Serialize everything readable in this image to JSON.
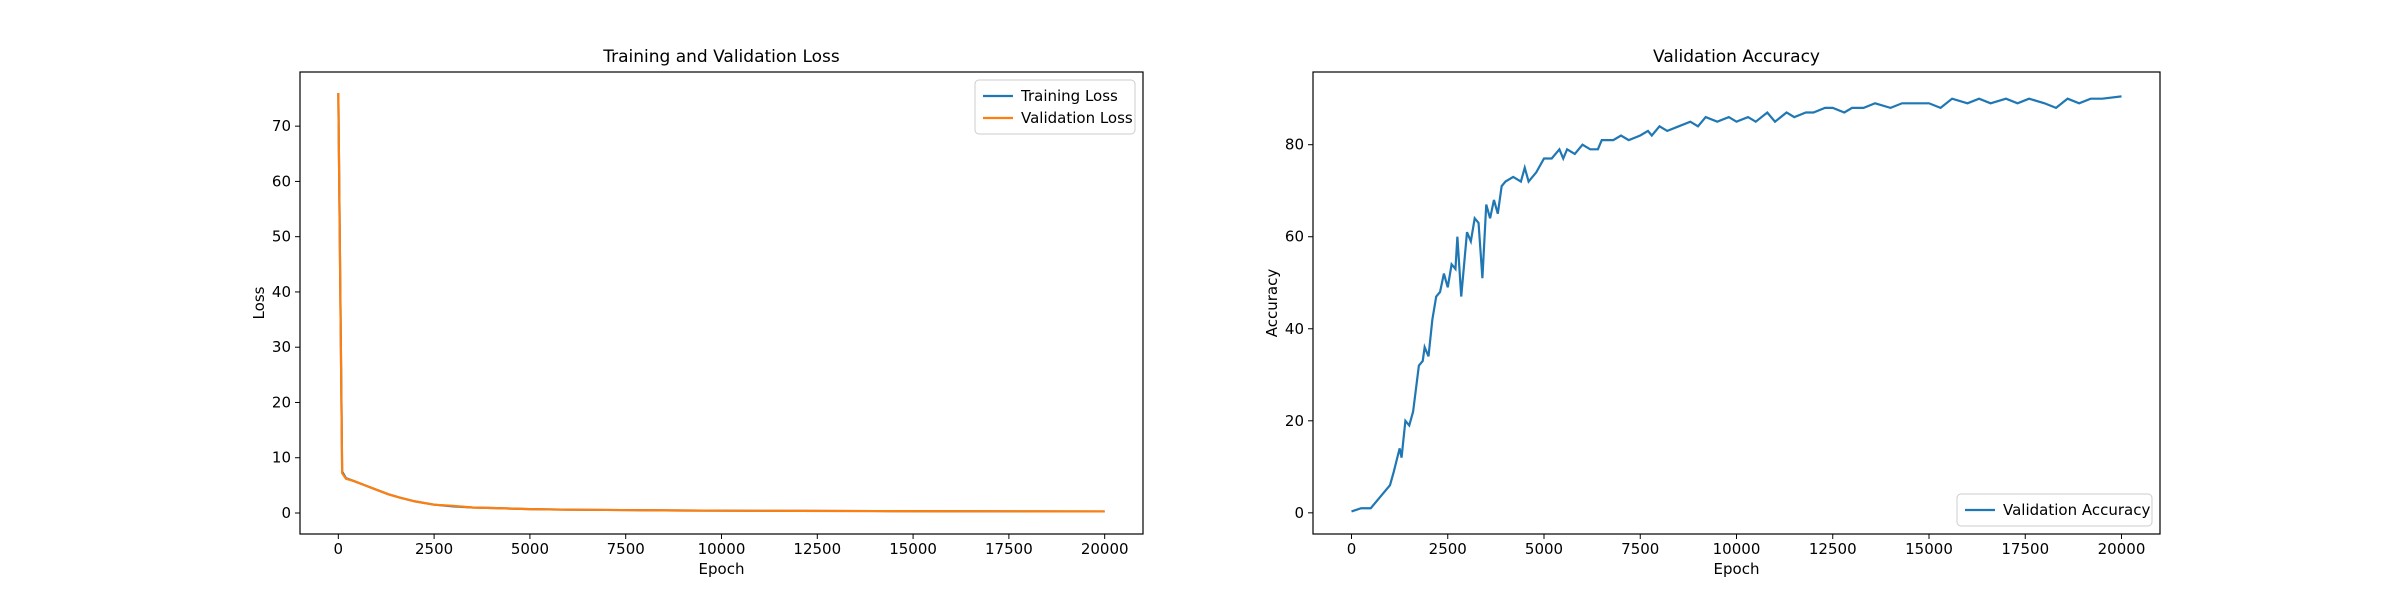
{
  "chart_data": [
    {
      "type": "line",
      "title": "Training and Validation Loss",
      "x_label": "Epoch",
      "y_label": "Loss",
      "x": [
        0,
        100,
        200,
        400,
        700,
        1000,
        1300,
        1600,
        2000,
        2500,
        3000,
        3500,
        4000,
        5000,
        6000,
        7000,
        8000,
        9000,
        10000,
        12000,
        14000,
        16000,
        18000,
        20000
      ],
      "series": [
        {
          "name": "Training Loss",
          "color": "#1f77b4",
          "values": [
            76,
            7.5,
            6.3,
            5.8,
            5.0,
            4.2,
            3.4,
            2.8,
            2.1,
            1.5,
            1.2,
            1.0,
            0.9,
            0.7,
            0.6,
            0.55,
            0.5,
            0.45,
            0.42,
            0.38,
            0.35,
            0.32,
            0.3,
            0.28
          ]
        },
        {
          "name": "Validation Loss",
          "color": "#ff7f0e",
          "values": [
            76,
            7.2,
            6.2,
            5.8,
            5.0,
            4.2,
            3.4,
            2.8,
            2.1,
            1.5,
            1.3,
            1.0,
            0.9,
            0.7,
            0.6,
            0.55,
            0.5,
            0.45,
            0.42,
            0.38,
            0.35,
            0.32,
            0.3,
            0.28
          ]
        }
      ],
      "xlim": [
        -1000,
        21000
      ],
      "ylim": [
        -3.8,
        79.8
      ],
      "xticks": [
        0,
        2500,
        5000,
        7500,
        10000,
        12500,
        15000,
        17500,
        20000
      ],
      "yticks": [
        0,
        10,
        20,
        30,
        40,
        50,
        60,
        70
      ],
      "legend": "upper right"
    },
    {
      "type": "line",
      "title": "Validation Accuracy",
      "x_label": "Epoch",
      "y_label": "Accuracy",
      "x": [
        0,
        250,
        500,
        750,
        1000,
        1100,
        1250,
        1300,
        1400,
        1500,
        1600,
        1750,
        1850,
        1900,
        2000,
        2100,
        2200,
        2300,
        2400,
        2500,
        2600,
        2700,
        2750,
        2850,
        3000,
        3100,
        3200,
        3300,
        3400,
        3500,
        3600,
        3700,
        3800,
        3900,
        4000,
        4200,
        4400,
        4500,
        4600,
        4800,
        5000,
        5200,
        5400,
        5500,
        5600,
        5800,
        6000,
        6200,
        6400,
        6500,
        6800,
        7000,
        7200,
        7500,
        7700,
        7800,
        8000,
        8200,
        8500,
        8800,
        9000,
        9200,
        9500,
        9800,
        10000,
        10300,
        10500,
        10800,
        11000,
        11300,
        11500,
        11800,
        12000,
        12300,
        12500,
        12800,
        13000,
        13300,
        13600,
        14000,
        14300,
        14600,
        15000,
        15300,
        15600,
        16000,
        16300,
        16600,
        17000,
        17300,
        17600,
        18000,
        18300,
        18600,
        18900,
        19200,
        19500,
        20000
      ],
      "series": [
        {
          "name": "Validation Accuracy",
          "color": "#1f77b4",
          "values": [
            0.3,
            1,
            1,
            3.5,
            6,
            9,
            14,
            12,
            20,
            19,
            22,
            32,
            33,
            36,
            34,
            42,
            47,
            48,
            52,
            49,
            54,
            53,
            60,
            47,
            61,
            59,
            64,
            63,
            51,
            67,
            64,
            68,
            65,
            71,
            72,
            73,
            72,
            75,
            72,
            74,
            77,
            77,
            79,
            77,
            79,
            78,
            80,
            79,
            79,
            81,
            81,
            82,
            81,
            82,
            83,
            82,
            84,
            83,
            84,
            85,
            84,
            86,
            85,
            86,
            85,
            86,
            85,
            87,
            85,
            87,
            86,
            87,
            87,
            88,
            88,
            87,
            88,
            88,
            89,
            88,
            89,
            89,
            89,
            88,
            90,
            89,
            90,
            89,
            90,
            89,
            90,
            89,
            88,
            90,
            89,
            90,
            90,
            90.5
          ]
        }
      ],
      "xlim": [
        -1000,
        21000
      ],
      "ylim": [
        -4.6,
        95.8
      ],
      "xticks": [
        0,
        2500,
        5000,
        7500,
        10000,
        12500,
        15000,
        17500,
        20000
      ],
      "yticks": [
        0,
        20,
        40,
        60,
        80
      ],
      "legend": "lower right"
    }
  ]
}
